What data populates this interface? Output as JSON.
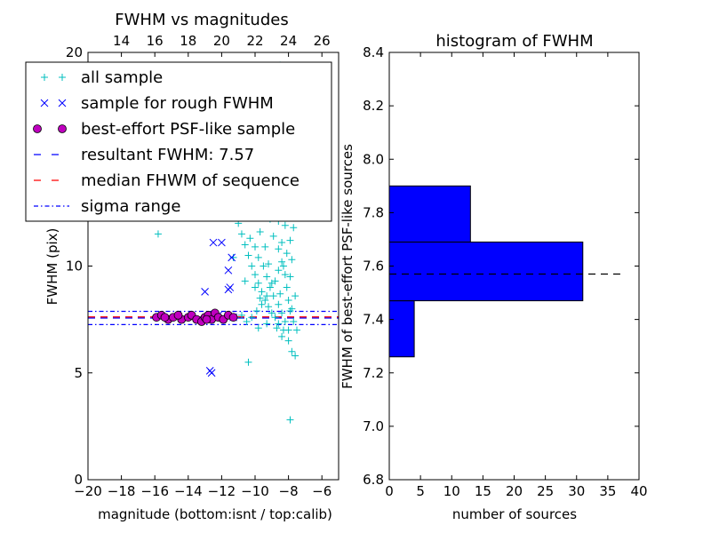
{
  "figure": {
    "background": "#ffffff"
  },
  "chart_data": [
    {
      "type": "scatter",
      "title": "FWHM vs magnitudes",
      "xlabel": "magnitude (bottom:isnt / top:calib)",
      "ylabel": "FWHM (pix)",
      "xlim": [
        -20,
        -5
      ],
      "ylim": [
        0,
        20
      ],
      "xticks": [
        -20,
        -18,
        -16,
        -14,
        -12,
        -10,
        -8,
        -6
      ],
      "xtick_labels": [
        "−20",
        "−18",
        "−16",
        "−14",
        "−12",
        "−10",
        "−8",
        "−6"
      ],
      "yticks": [
        0,
        5,
        10,
        15,
        20
      ],
      "ytick_labels": [
        "0",
        "5",
        "10",
        "15",
        "20"
      ],
      "top_axis": {
        "ticks": [
          14,
          16,
          18,
          20,
          22,
          24,
          26
        ],
        "tick_labels": [
          "14",
          "16",
          "18",
          "20",
          "22",
          "24",
          "26"
        ],
        "offset": 32
      },
      "legend": {
        "placement": "upper-left",
        "entries": [
          {
            "label": "all sample",
            "marker": "+",
            "color": "#00bfbf"
          },
          {
            "label": "sample for rough FWHM",
            "marker": "x",
            "color": "#0000ff"
          },
          {
            "label": "best-effort PSF-like sample",
            "marker": "o",
            "color": "#bf00bf"
          },
          {
            "label": "resultant FWHM: 7.57",
            "line": "dashed",
            "color": "#0000ff"
          },
          {
            "label": "median FHWM of sequence",
            "line": "dashed",
            "color": "#ff0000"
          },
          {
            "label": "sigma range",
            "line": "dashdot",
            "color": "#0000ff"
          }
        ]
      },
      "hlines": [
        {
          "y": 7.57,
          "style": "dashed",
          "color": "#0000ff"
        },
        {
          "y": 7.62,
          "style": "dashed",
          "color": "#ff0000"
        },
        {
          "y": 7.88,
          "style": "dashdot",
          "color": "#0000ff"
        },
        {
          "y": 7.26,
          "style": "dashdot",
          "color": "#0000ff"
        }
      ],
      "series": [
        {
          "name": "all sample",
          "marker": "+",
          "color": "#00bfbf",
          "points": [
            [
              -15.8,
              11.5
            ],
            [
              -10.4,
              5.5
            ],
            [
              -7.9,
              2.8
            ],
            [
              -7.6,
              5.8
            ],
            [
              -7.8,
              6.0
            ],
            [
              -8.0,
              6.5
            ],
            [
              -8.3,
              7.0
            ],
            [
              -8.6,
              7.3
            ],
            [
              -8.8,
              7.6
            ],
            [
              -9.0,
              7.8
            ],
            [
              -9.2,
              8.1
            ],
            [
              -9.4,
              8.4
            ],
            [
              -9.6,
              8.8
            ],
            [
              -9.8,
              9.2
            ],
            [
              -10.0,
              9.6
            ],
            [
              -10.2,
              10.0
            ],
            [
              -10.4,
              10.5
            ],
            [
              -10.6,
              11.0
            ],
            [
              -10.8,
              11.5
            ],
            [
              -11.0,
              12.0
            ],
            [
              -9.5,
              12.5
            ],
            [
              -9.0,
              13.0
            ],
            [
              -8.5,
              13.5
            ],
            [
              -8.7,
              14.0
            ],
            [
              -9.1,
              12.2
            ],
            [
              -8.9,
              11.4
            ],
            [
              -8.6,
              10.8
            ],
            [
              -8.4,
              10.2
            ],
            [
              -8.2,
              9.6
            ],
            [
              -8.1,
              9.0
            ],
            [
              -8.0,
              8.4
            ],
            [
              -7.9,
              7.9
            ],
            [
              -7.7,
              7.4
            ],
            [
              -7.5,
              7.0
            ],
            [
              -8.5,
              8.7
            ],
            [
              -8.8,
              9.3
            ],
            [
              -9.2,
              10.1
            ],
            [
              -9.4,
              10.9
            ],
            [
              -9.7,
              11.6
            ],
            [
              -9.9,
              12.3
            ],
            [
              -10.1,
              12.9
            ],
            [
              -8.3,
              12.7
            ],
            [
              -8.2,
              11.9
            ],
            [
              -8.4,
              11.1
            ],
            [
              -8.6,
              12.1
            ],
            [
              -8.8,
              12.9
            ],
            [
              -9.0,
              13.6
            ],
            [
              -8.5,
              14.6
            ],
            [
              -8.3,
              15.1
            ],
            [
              -8.7,
              15.8
            ],
            [
              -8.0,
              13.2
            ],
            [
              -7.8,
              12.6
            ],
            [
              -7.7,
              11.8
            ],
            [
              -7.9,
              11.2
            ],
            [
              -8.1,
              10.6
            ],
            [
              -8.3,
              10.0
            ],
            [
              -8.6,
              9.8
            ],
            [
              -9.0,
              9.2
            ],
            [
              -9.3,
              8.6
            ],
            [
              -9.6,
              8.2
            ],
            [
              -9.9,
              7.9
            ],
            [
              -10.2,
              7.6
            ],
            [
              -10.5,
              7.4
            ],
            [
              -10.8,
              7.7
            ],
            [
              -11.2,
              7.6
            ],
            [
              -8.2,
              7.4
            ],
            [
              -8.4,
              7.8
            ],
            [
              -8.6,
              8.2
            ],
            [
              -8.9,
              8.6
            ],
            [
              -9.1,
              9.0
            ],
            [
              -9.3,
              9.5
            ],
            [
              -9.5,
              10.0
            ],
            [
              -9.8,
              10.4
            ],
            [
              -10.0,
              10.9
            ],
            [
              -10.3,
              11.3
            ],
            [
              -10.0,
              9.0
            ],
            [
              -9.7,
              8.5
            ],
            [
              -8.0,
              7.0
            ],
            [
              -8.4,
              6.7
            ],
            [
              -8.7,
              7.1
            ],
            [
              -9.3,
              7.3
            ],
            [
              -9.8,
              7.1
            ],
            [
              -8.1,
              14.4
            ],
            [
              -8.9,
              14.9
            ],
            [
              -8.4,
              13.6
            ],
            [
              -9.3,
              13.1
            ],
            [
              -9.6,
              13.8
            ],
            [
              -10.0,
              14.2
            ],
            [
              -8.2,
              16.2
            ],
            [
              -8.6,
              16.8
            ],
            [
              -9.0,
              17.2
            ],
            [
              -8.8,
              18.0
            ],
            [
              -9.2,
              18.8
            ],
            [
              -8.5,
              19.4
            ],
            [
              -9.5,
              15.0
            ],
            [
              -7.8,
              10.3
            ],
            [
              -7.9,
              9.5
            ],
            [
              -7.6,
              8.6
            ],
            [
              -7.8,
              8.0
            ],
            [
              -10.9,
              13.0
            ],
            [
              -11.3,
              10.4
            ],
            [
              -10.6,
              9.3
            ]
          ]
        },
        {
          "name": "sample for rough FWHM",
          "marker": "x",
          "color": "#0000ff",
          "points": [
            [
              -12.5,
              11.1
            ],
            [
              -12.0,
              11.1
            ],
            [
              -11.4,
              10.4
            ],
            [
              -11.6,
              9.8
            ],
            [
              -11.5,
              9.0
            ],
            [
              -11.6,
              8.9
            ],
            [
              -13.0,
              8.8
            ],
            [
              -12.7,
              5.1
            ],
            [
              -12.6,
              5.0
            ],
            [
              -11.3,
              7.6
            ],
            [
              -12.2,
              7.7
            ],
            [
              -13.4,
              7.5
            ]
          ]
        },
        {
          "name": "best-effort PSF-like sample",
          "marker": "o",
          "color": "#bf00bf",
          "points": [
            [
              -15.9,
              7.6
            ],
            [
              -15.6,
              7.7
            ],
            [
              -15.2,
              7.5
            ],
            [
              -14.9,
              7.6
            ],
            [
              -14.4,
              7.5
            ],
            [
              -14.0,
              7.6
            ],
            [
              -13.8,
              7.7
            ],
            [
              -13.5,
              7.5
            ],
            [
              -13.2,
              7.4
            ],
            [
              -13.0,
              7.6
            ],
            [
              -12.8,
              7.7
            ],
            [
              -12.6,
              7.5
            ],
            [
              -12.4,
              7.8
            ],
            [
              -12.2,
              7.6
            ],
            [
              -11.9,
              7.5
            ],
            [
              -11.6,
              7.7
            ],
            [
              -11.3,
              7.6
            ],
            [
              -14.6,
              7.7
            ],
            [
              -15.4,
              7.6
            ],
            [
              -12.9,
              7.5
            ]
          ]
        }
      ]
    },
    {
      "type": "bar",
      "orientation": "horizontal",
      "title": "histogram of FWHM",
      "xlabel": "number of sources",
      "ylabel": "FWHM of best-effort PSF-like sources",
      "xlim": [
        0,
        40
      ],
      "ylim": [
        6.8,
        8.4
      ],
      "xticks": [
        0,
        5,
        10,
        15,
        20,
        25,
        30,
        35,
        40
      ],
      "xtick_labels": [
        "0",
        "5",
        "10",
        "15",
        "20",
        "25",
        "30",
        "35",
        "40"
      ],
      "yticks": [
        6.8,
        7.0,
        7.2,
        7.4,
        7.6,
        7.8,
        8.0,
        8.2,
        8.4
      ],
      "ytick_labels": [
        "6.8",
        "7.0",
        "7.2",
        "7.4",
        "7.6",
        "7.8",
        "8.0",
        "8.2",
        "8.4"
      ],
      "bar_color": "#0000ff",
      "bins": [
        {
          "y0": 7.26,
          "y1": 7.47,
          "count": 4
        },
        {
          "y0": 7.47,
          "y1": 7.69,
          "count": 31
        },
        {
          "y0": 7.69,
          "y1": 7.9,
          "count": 13
        }
      ],
      "hline": {
        "y": 7.57,
        "x0": 0,
        "x1": 37,
        "style": "dashed",
        "color": "#000000"
      }
    }
  ]
}
